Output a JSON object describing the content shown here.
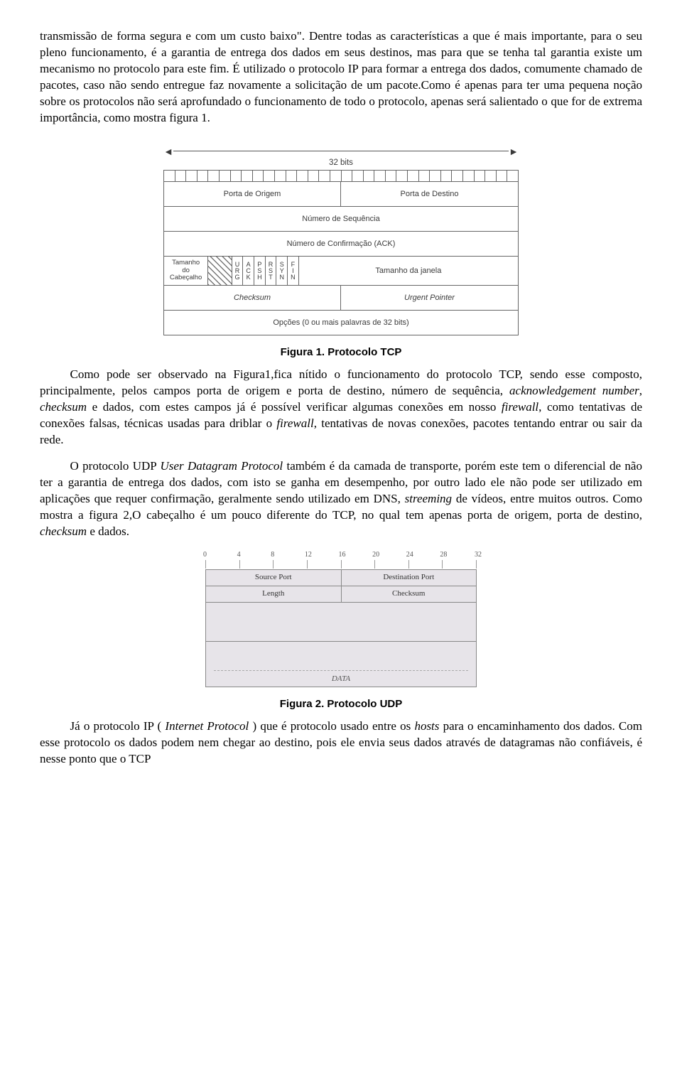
{
  "paragraphs": {
    "p1_a": "transmissão de forma segura e com um custo baixo\". Dentre todas as características a que é mais importante, para o seu pleno funcionamento, é a garantia de entrega dos dados em seus destinos, mas para que se tenha tal garantia existe um mecanismo no protocolo para este fim. É utilizado o protocolo IP para formar a entrega dos dados, comumente chamado de pacotes, caso não sendo entregue faz novamente a solicitação de um pacote.Como é apenas para ter uma pequena noção sobre os protocolos não será aprofundado o funcionamento de todo o protocolo, apenas será salientado o que for de extrema importância, como mostra figura 1.",
    "p2_a": "Como pode ser observado na Figura1,fica nítido o funcionamento do protocolo TCP, sendo esse composto, principalmente, pelos campos porta de origem e porta de destino, número de sequência, ",
    "p2_i1": "acknowledgement number",
    "p2_b": ", ",
    "p2_i2": "checksum",
    "p2_c": " e dados, com estes campos já é possível verificar algumas conexões em nosso ",
    "p2_i3": "firewall",
    "p2_d": ", como tentativas de conexões falsas, técnicas usadas para driblar o ",
    "p2_i4": "firewall",
    "p2_e": ", tentativas de novas conexões, pacotes tentando entrar ou sair da rede.",
    "p3_a": "O protocolo UDP ",
    "p3_i1": "User Datagram Protocol",
    "p3_b": " também é da camada de transporte, porém este tem o diferencial de não ter a garantia de entrega dos dados, com isto se ganha em desempenho, por outro lado ele não pode ser utilizado em aplicações que requer confirmação, geralmente sendo utilizado em DNS, ",
    "p3_i2": "streeming",
    "p3_c": " de vídeos, entre muitos outros. Como mostra a figura 2,O cabeçalho é um pouco diferente do TCP, no qual tem apenas porta de origem, porta de destino, ",
    "p3_i3": "checksum",
    "p3_d": " e dados.",
    "p4_a": "Já o protocolo IP ( ",
    "p4_i1": "Internet Protocol",
    "p4_b": " ) que é protocolo usado entre os ",
    "p4_i2": "hosts",
    "p4_c": " para o encaminhamento dos dados. Com esse protocolo os dados podem nem chegar ao destino, pois ele envia seus dados através de datagramas não confiáveis, é nesse ponto que o TCP"
  },
  "figures": {
    "fig1": {
      "caption": "Figura 1. Protocolo TCP",
      "bits_label": "32 bits",
      "bit_count": 32,
      "rows": {
        "src_port": "Porta de Origem",
        "dst_port": "Porta de Destino",
        "seq": "Número de Sequência",
        "ack": "Número de Confirmação (ACK)",
        "thl_l1": "Tamanho",
        "thl_l2": "do",
        "thl_l3": "Cabeçalho",
        "window": "Tamanho da janela",
        "checksum": "Checksum",
        "urgptr": "Urgent Pointer",
        "options": "Opções (0 ou mais palavras de 32 bits)"
      },
      "flags": [
        [
          "U",
          "R",
          "G"
        ],
        [
          "A",
          "C",
          "K"
        ],
        [
          "P",
          "S",
          "H"
        ],
        [
          "R",
          "S",
          "T"
        ],
        [
          "S",
          "Y",
          "N"
        ],
        [
          "F",
          "I",
          "N"
        ]
      ],
      "colors": {
        "border": "#666666",
        "text": "#3a3a3a",
        "hatch": "#777777",
        "background": "#ffffff"
      }
    },
    "fig2": {
      "caption": "Figura 2. Protocolo UDP",
      "ruler_labels": [
        "0",
        "4",
        "8",
        "12",
        "16",
        "20",
        "24",
        "28",
        "32"
      ],
      "rows": {
        "src_port": "Source Port",
        "dst_port": "Destination Port",
        "length": "Length",
        "checksum": "Checksum",
        "data": "DATA"
      },
      "colors": {
        "border": "#888888",
        "cell_bg": "#e7e4e9",
        "text": "#333333",
        "label": "#555555"
      }
    }
  }
}
